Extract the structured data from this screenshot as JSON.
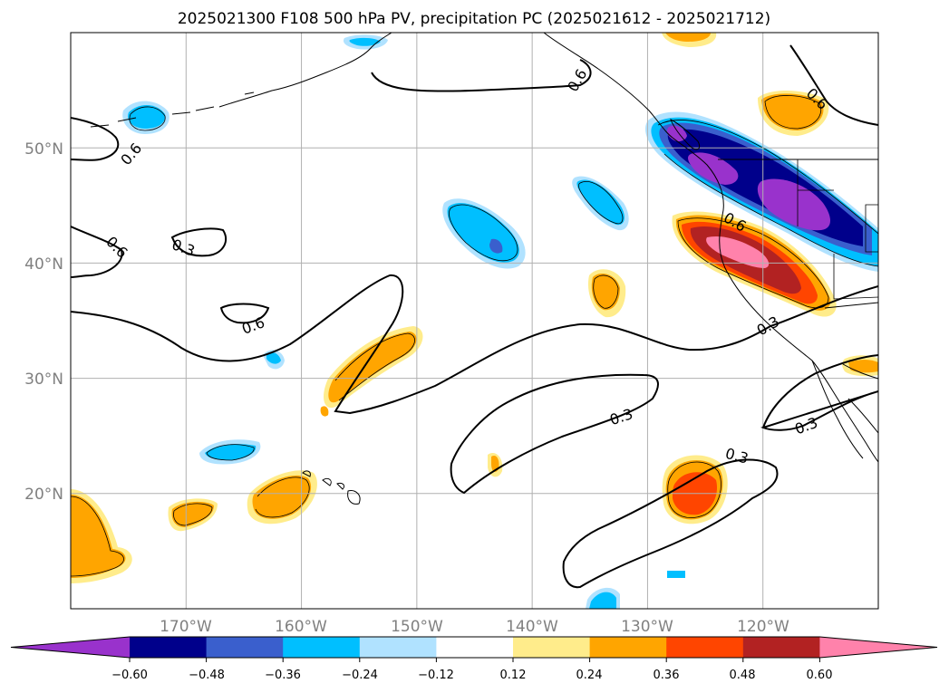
{
  "figure": {
    "title": "2025021300 F108 500 hPa PV, precipitation PC (2025021612 - 2025021712)"
  },
  "map": {
    "lon_range": [
      -180,
      -110
    ],
    "lat_range": [
      10,
      60
    ],
    "lat_labels": [
      "20°N",
      "30°N",
      "40°N",
      "50°N"
    ],
    "lon_labels": [
      "170°W",
      "160°W",
      "150°W",
      "140°W",
      "130°W",
      "120°W"
    ],
    "gridlines": true
  },
  "contours": {
    "pv_labels": [
      "0.6",
      "0.6",
      "0.6",
      "0.6",
      "0.6",
      "0.6",
      "0.3",
      "0.3",
      "0.3",
      "0.3",
      "0.3"
    ]
  },
  "colorbar": {
    "ticks": [
      "−0.60",
      "−0.48",
      "−0.36",
      "−0.24",
      "−0.12",
      "0.12",
      "0.24",
      "0.36",
      "0.48",
      "0.60"
    ],
    "colors": [
      "#9932cc",
      "#00008b",
      "#3a5fcd",
      "#00bfff",
      "#b0e2ff",
      "#ffffff",
      "#ffec8b",
      "#ffa500",
      "#ff4500",
      "#b22222",
      "#ff82ab"
    ],
    "extend": "both"
  }
}
